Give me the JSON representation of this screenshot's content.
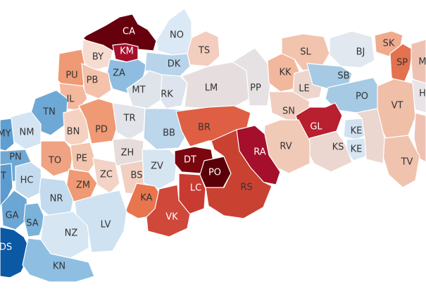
{
  "map": {
    "districts": [
      {
        "code": "CA",
        "color": "#67000d",
        "label_color": "#ffffff"
      },
      {
        "code": "KM",
        "color": "#a50f2b",
        "label_color": "#ffffff"
      },
      {
        "code": "NO",
        "color": "#dbe9f6",
        "label_color": "#333333"
      },
      {
        "code": "TS",
        "color": "#f3cdbd",
        "label_color": "#333333"
      },
      {
        "code": "BY",
        "color": "#f6dcd0",
        "label_color": "#333333"
      },
      {
        "code": "ZA",
        "color": "#8fbde1",
        "label_color": "#333333"
      },
      {
        "code": "DK",
        "color": "#b7d4ea",
        "label_color": "#333333"
      },
      {
        "code": "PU",
        "color": "#ef9a74",
        "label_color": "#333333"
      },
      {
        "code": "PB",
        "color": "#f4c2ab",
        "label_color": "#333333"
      },
      {
        "code": "MT",
        "color": "#dfe3ea",
        "label_color": "#333333"
      },
      {
        "code": "RK",
        "color": "#dde4ee",
        "label_color": "#333333"
      },
      {
        "code": "LM",
        "color": "#e6dede",
        "label_color": "#333333"
      },
      {
        "code": "PP",
        "color": "#e6e2e4",
        "label_color": "#333333"
      },
      {
        "code": "KK",
        "color": "#f2b79c",
        "label_color": "#333333"
      },
      {
        "code": "SL",
        "color": "#f2c3ad",
        "label_color": "#333333"
      },
      {
        "code": "LE",
        "color": "#ecd6cd",
        "label_color": "#333333"
      },
      {
        "code": "BJ",
        "color": "#e2e8f0",
        "label_color": "#333333"
      },
      {
        "code": "SB",
        "color": "#a6cae4",
        "label_color": "#333333"
      },
      {
        "code": "PO",
        "color": "#a6cae4",
        "label_color": "#333333"
      },
      {
        "code": "SK",
        "color": "#f0ab8d",
        "label_color": "#333333"
      },
      {
        "code": "SP",
        "color": "#e3724f",
        "label_color": "#333333"
      },
      {
        "code": "M",
        "color": "#eec2b2",
        "label_color": "#333333"
      },
      {
        "code": "H",
        "color": "#e9e4e8",
        "label_color": "#333333"
      },
      {
        "code": "VT",
        "color": "#f0bfa8",
        "label_color": "#333333"
      },
      {
        "code": "IL",
        "color": "#f4b89e",
        "label_color": "#333333"
      },
      {
        "code": "TN",
        "color": "#6ea9d6",
        "label_color": "#333333"
      },
      {
        "code": "NM",
        "color": "#d4e4f2",
        "label_color": "#333333"
      },
      {
        "code": "MY",
        "color": "#5e9fd1",
        "label_color": "#333333"
      },
      {
        "code": "BN",
        "color": "#f5d1c1",
        "label_color": "#333333"
      },
      {
        "code": "PD",
        "color": "#ef9a74",
        "label_color": "#333333"
      },
      {
        "code": "TR",
        "color": "#e2e4ea",
        "label_color": "#333333"
      },
      {
        "code": "BB",
        "color": "#bcd6eb",
        "label_color": "#333333"
      },
      {
        "code": "BR",
        "color": "#de5f43",
        "label_color": "#333333"
      },
      {
        "code": "SN",
        "color": "#f0cdbf",
        "label_color": "#333333"
      },
      {
        "code": "GL",
        "color": "#b81f2f",
        "label_color": "#ffffff"
      },
      {
        "code": "KE",
        "color": "#d0e2f1",
        "label_color": "#333333"
      },
      {
        "code": "KE",
        "color": "#d6e6f3",
        "label_color": "#333333"
      },
      {
        "code": "KS",
        "color": "#ebd7d0",
        "label_color": "#333333"
      },
      {
        "code": "RV",
        "color": "#f1c9b7",
        "label_color": "#333333"
      },
      {
        "code": "RA",
        "color": "#a50f2b",
        "label_color": "#ffffff"
      },
      {
        "code": "TV",
        "color": "#f0c3ae",
        "label_color": "#333333"
      },
      {
        "code": "PN",
        "color": "#6fa8d5",
        "label_color": "#333333"
      },
      {
        "code": "T",
        "color": "#5c9bcf",
        "label_color": "#333333"
      },
      {
        "code": "TO",
        "color": "#f0a383",
        "label_color": "#333333"
      },
      {
        "code": "PE",
        "color": "#f3c4ae",
        "label_color": "#333333"
      },
      {
        "code": "ZH",
        "color": "#e6dcdc",
        "label_color": "#333333"
      },
      {
        "code": "HC",
        "color": "#c5dcee",
        "label_color": "#333333"
      },
      {
        "code": "ZM",
        "color": "#ef9a74",
        "label_color": "#333333"
      },
      {
        "code": "ZC",
        "color": "#f2d3c6",
        "label_color": "#333333"
      },
      {
        "code": "BS",
        "color": "#f1cfc1",
        "label_color": "#333333"
      },
      {
        "code": "ZV",
        "color": "#d6e5f2",
        "label_color": "#333333"
      },
      {
        "code": "DT",
        "color": "#7a0610",
        "label_color": "#ffffff"
      },
      {
        "code": "PO",
        "color": "#5a0008",
        "label_color": "#ffffff"
      },
      {
        "code": "LC",
        "color": "#c93a31",
        "label_color": "#ffffff"
      },
      {
        "code": "RS",
        "color": "#c94131",
        "label_color": "#333333"
      },
      {
        "code": "KA",
        "color": "#e7764e",
        "label_color": "#333333"
      },
      {
        "code": "VK",
        "color": "#d0483a",
        "label_color": "#ffffff"
      },
      {
        "code": "NR",
        "color": "#c3dbee",
        "label_color": "#333333"
      },
      {
        "code": "GA",
        "color": "#6ba6d4",
        "label_color": "#333333"
      },
      {
        "code": "SA",
        "color": "#7bb2da",
        "label_color": "#333333"
      },
      {
        "code": "NZ",
        "color": "#d6e6f3",
        "label_color": "#333333"
      },
      {
        "code": "LV",
        "color": "#cfe2f1",
        "label_color": "#333333"
      },
      {
        "code": "DS",
        "color": "#0b58a4",
        "label_color": "#ffffff"
      },
      {
        "code": "KN",
        "color": "#8ebfe2",
        "label_color": "#333333"
      }
    ]
  }
}
